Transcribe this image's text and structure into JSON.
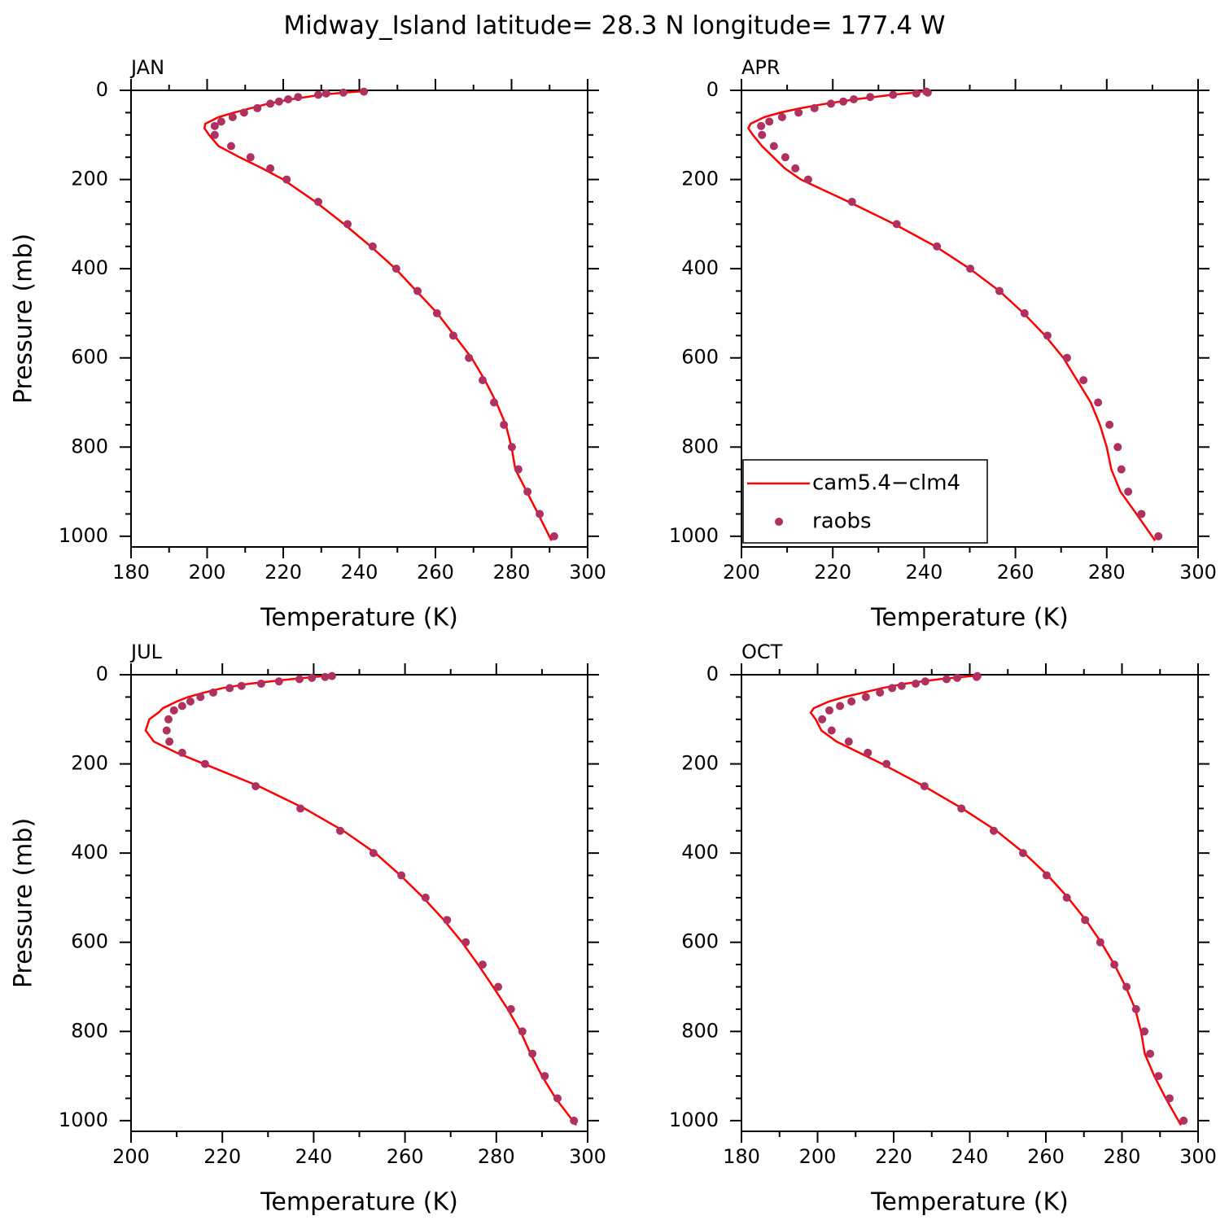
{
  "title": "Midway_Island  latitude= 28.3 N longitude= 177.4 W",
  "chart_data": [
    {
      "type": "profile",
      "title": "JAN",
      "xlabel": "Temperature (K)",
      "ylabel": "Pressure (mb)",
      "xlim": [
        180,
        300
      ],
      "xticks": [
        180,
        200,
        220,
        240,
        260,
        280,
        300
      ],
      "ylim": [
        1024,
        0
      ],
      "yticks": [
        0,
        200,
        400,
        600,
        800,
        1000
      ],
      "series": [
        {
          "type": "line",
          "color": "#ff0000",
          "y": [
            1010,
            950,
            900,
            850,
            800,
            750,
            700,
            650,
            600,
            550,
            500,
            450,
            400,
            350,
            300,
            250,
            200,
            175,
            150,
            125,
            100,
            85,
            75,
            60,
            50,
            40,
            30,
            20,
            10,
            5,
            2
          ],
          "x": [
            290.5,
            287,
            284,
            281,
            280,
            278.5,
            276,
            273,
            269.5,
            265,
            260.5,
            255,
            249.5,
            243,
            236,
            228.5,
            220,
            214.5,
            208.5,
            203,
            200.5,
            199.3,
            199.5,
            203,
            207,
            211.5,
            216,
            222,
            230,
            236,
            241
          ]
        },
        {
          "type": "scatter",
          "color": "#b03060",
          "y": [
            1000,
            950,
            900,
            850,
            800,
            750,
            700,
            650,
            600,
            550,
            500,
            450,
            400,
            350,
            300,
            250,
            200,
            175,
            150,
            125,
            100,
            80,
            70,
            60,
            50,
            40,
            30,
            25,
            20,
            15,
            10,
            7,
            5,
            3
          ],
          "x": [
            291.2,
            287.4,
            284.2,
            281.8,
            280.1,
            278.0,
            275.4,
            272.4,
            268.8,
            264.7,
            260.4,
            255.3,
            249.7,
            243.5,
            236.9,
            229.2,
            220.9,
            216.6,
            211.4,
            206.3,
            202.0,
            202.0,
            203.7,
            206.7,
            209.7,
            213.2,
            216.6,
            218.9,
            221.3,
            223.9,
            229.2,
            231.3,
            235.8,
            241.2
          ]
        }
      ]
    },
    {
      "type": "profile",
      "title": "APR",
      "xlabel": "Temperature (K)",
      "ylabel": null,
      "xlim": [
        200,
        300
      ],
      "xticks": [
        200,
        220,
        240,
        260,
        280,
        300
      ],
      "ylim": [
        1024,
        0
      ],
      "yticks": [
        0,
        200,
        400,
        600,
        800,
        1000
      ],
      "legend": "lower left",
      "series": [
        {
          "name": "cam5.4−clm4",
          "type": "line",
          "color": "#ff0000",
          "y": [
            1010,
            950,
            900,
            850,
            800,
            750,
            700,
            650,
            600,
            550,
            500,
            450,
            400,
            350,
            300,
            250,
            200,
            175,
            150,
            125,
            100,
            85,
            75,
            60,
            50,
            40,
            30,
            20,
            10,
            5,
            2
          ],
          "x": [
            290.6,
            286.5,
            283,
            281,
            280,
            278.5,
            276.5,
            273.5,
            270.5,
            266.5,
            261.8,
            256.5,
            250,
            242.5,
            233.5,
            223.5,
            213,
            209.5,
            207,
            204.5,
            202.5,
            201.5,
            202,
            205,
            208.5,
            213,
            218.5,
            225,
            233,
            238,
            240
          ]
        },
        {
          "name": "raobs",
          "type": "scatter",
          "color": "#b03060",
          "y": [
            1000,
            950,
            900,
            850,
            800,
            750,
            700,
            650,
            600,
            550,
            500,
            450,
            400,
            350,
            300,
            250,
            200,
            175,
            150,
            125,
            100,
            80,
            70,
            60,
            50,
            40,
            30,
            25,
            20,
            15,
            10,
            7,
            5,
            3
          ],
          "x": [
            291.3,
            287.6,
            284.7,
            283.2,
            282.4,
            280.6,
            278.1,
            274.9,
            271.3,
            267.0,
            262.0,
            256.5,
            250.1,
            242.8,
            234.0,
            224.2,
            214.6,
            211.8,
            209.6,
            207.1,
            204.5,
            204.3,
            206.1,
            208.9,
            212.5,
            216.0,
            219.6,
            222.3,
            224.6,
            228.2,
            233.2,
            238.3,
            240.8,
            240.5
          ]
        }
      ]
    },
    {
      "type": "profile",
      "title": "JUL",
      "xlabel": "Temperature (K)",
      "ylabel": "Pressure (mb)",
      "xlim": [
        200,
        300
      ],
      "xticks": [
        200,
        220,
        240,
        260,
        280,
        300
      ],
      "ylim": [
        1024,
        0
      ],
      "yticks": [
        0,
        200,
        400,
        600,
        800,
        1000
      ],
      "series": [
        {
          "type": "line",
          "color": "#ff0000",
          "y": [
            1010,
            950,
            900,
            850,
            800,
            750,
            700,
            650,
            600,
            550,
            500,
            450,
            400,
            350,
            300,
            250,
            200,
            175,
            150,
            125,
            100,
            85,
            75,
            60,
            50,
            40,
            30,
            20,
            10,
            5,
            2
          ],
          "x": [
            297.5,
            293,
            290,
            287.5,
            285.3,
            282.5,
            279.3,
            276,
            272.5,
            268.5,
            264,
            259,
            253.5,
            246.5,
            238,
            228,
            216,
            210,
            205,
            203.2,
            204,
            206,
            207,
            210,
            212.5,
            216,
            220,
            226,
            235,
            240,
            243.5
          ]
        },
        {
          "type": "scatter",
          "color": "#b03060",
          "y": [
            1000,
            950,
            900,
            850,
            800,
            750,
            700,
            650,
            600,
            550,
            500,
            450,
            400,
            350,
            300,
            250,
            200,
            175,
            150,
            125,
            100,
            80,
            70,
            60,
            50,
            40,
            30,
            25,
            20,
            15,
            10,
            7,
            5,
            3
          ],
          "x": [
            297.0,
            293.4,
            290.6,
            287.9,
            285.7,
            283.2,
            280.4,
            277.0,
            273.3,
            269.2,
            264.5,
            259.2,
            253.1,
            245.8,
            237.1,
            227.3,
            216.2,
            211.2,
            208.4,
            207.8,
            208.2,
            209.4,
            211.2,
            213.0,
            215.2,
            218.0,
            221.6,
            224.2,
            228.5,
            232.4,
            236.9,
            239.6,
            242.5,
            244.0
          ]
        }
      ]
    },
    {
      "type": "profile",
      "title": "OCT",
      "xlabel": "Temperature (K)",
      "ylabel": null,
      "xlim": [
        180,
        300
      ],
      "xticks": [
        180,
        200,
        220,
        240,
        260,
        280,
        300
      ],
      "ylim": [
        1024,
        0
      ],
      "yticks": [
        0,
        200,
        400,
        600,
        800,
        1000
      ],
      "series": [
        {
          "type": "line",
          "color": "#ff0000",
          "y": [
            1010,
            950,
            900,
            850,
            800,
            750,
            700,
            650,
            600,
            550,
            500,
            450,
            400,
            350,
            300,
            250,
            200,
            175,
            150,
            125,
            100,
            85,
            75,
            60,
            50,
            40,
            30,
            20,
            10,
            5,
            2
          ],
          "x": [
            295.5,
            291.5,
            288.5,
            286,
            285,
            283.5,
            281,
            278,
            274.5,
            270.5,
            265.8,
            260.5,
            254.3,
            247,
            238,
            228,
            217,
            211,
            205,
            201,
            199.5,
            198.2,
            199,
            203,
            207,
            212,
            217,
            223,
            232,
            238,
            242
          ]
        },
        {
          "type": "scatter",
          "color": "#b03060",
          "y": [
            1000,
            950,
            900,
            850,
            800,
            750,
            700,
            650,
            600,
            550,
            500,
            450,
            400,
            350,
            300,
            250,
            200,
            175,
            150,
            125,
            100,
            80,
            70,
            60,
            50,
            40,
            30,
            25,
            20,
            15,
            10,
            7,
            5,
            3
          ],
          "x": [
            296.2,
            292.5,
            289.6,
            287.4,
            285.9,
            283.7,
            281.2,
            278.0,
            274.3,
            270.3,
            265.5,
            260.2,
            254.0,
            246.3,
            237.8,
            228.1,
            218.1,
            213.2,
            208.2,
            203.7,
            201.2,
            203.1,
            205.9,
            208.9,
            212.7,
            216.4,
            219.6,
            222.1,
            225.8,
            228.3,
            233.9,
            236.7,
            241.8,
            242.0
          ]
        }
      ]
    }
  ]
}
